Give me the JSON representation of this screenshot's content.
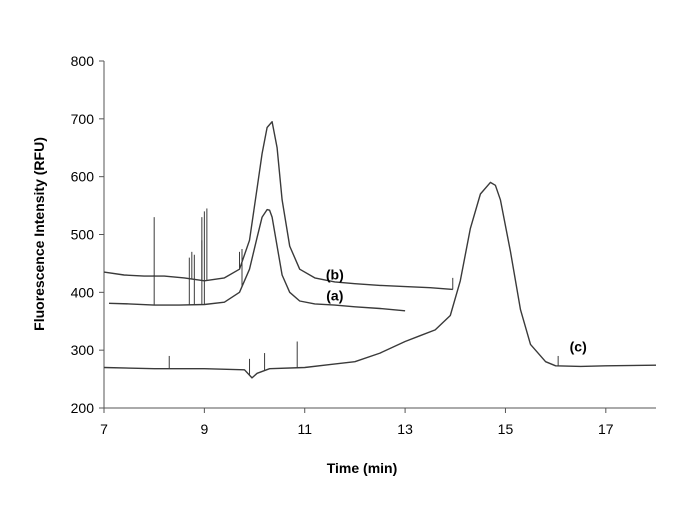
{
  "chart_data": {
    "type": "line",
    "title": "",
    "xlabel": "Time (min)",
    "ylabel": "Fluorescence Intensity (RFU)",
    "xlim": [
      7,
      18
    ],
    "ylim": [
      200,
      800
    ],
    "xticks": [
      7,
      9,
      11,
      13,
      15,
      17
    ],
    "yticks": [
      200,
      300,
      400,
      500,
      600,
      700,
      800
    ],
    "grid": false,
    "legend": "none",
    "line_color": "#3a3a3a",
    "series": [
      {
        "name": "(a)",
        "label_at": [
          11.6,
          386
        ],
        "x": [
          7.1,
          7.5,
          8.0,
          8.5,
          9.0,
          9.4,
          9.7,
          9.9,
          10.05,
          10.15,
          10.25,
          10.3,
          10.35,
          10.45,
          10.55,
          10.7,
          10.9,
          11.2,
          11.6,
          12.0,
          12.5,
          13.0
        ],
        "y": [
          381,
          380,
          378,
          378,
          379,
          383,
          400,
          440,
          495,
          530,
          543,
          542,
          530,
          480,
          430,
          400,
          385,
          380,
          378,
          375,
          372,
          368
        ],
        "spikes": [
          [
            8.0,
            430
          ],
          [
            8.7,
            460
          ],
          [
            8.8,
            465
          ],
          [
            8.95,
            490
          ],
          [
            9.0,
            540
          ],
          [
            9.75,
            475
          ]
        ]
      },
      {
        "name": "(b)",
        "label_at": [
          11.6,
          422
        ],
        "x": [
          7.0,
          7.4,
          7.8,
          8.2,
          8.6,
          9.0,
          9.4,
          9.7,
          9.9,
          10.05,
          10.15,
          10.25,
          10.35,
          10.45,
          10.55,
          10.7,
          10.9,
          11.2,
          11.6,
          12.0,
          12.5,
          13.0,
          13.5,
          13.95
        ],
        "y": [
          435,
          430,
          428,
          428,
          425,
          420,
          425,
          440,
          490,
          580,
          640,
          685,
          695,
          650,
          560,
          480,
          440,
          425,
          418,
          415,
          412,
          410,
          408,
          405
        ],
        "spikes": [
          [
            8.0,
            530
          ],
          [
            8.75,
            470
          ],
          [
            8.95,
            530
          ],
          [
            9.05,
            545
          ],
          [
            9.7,
            470
          ],
          [
            13.95,
            425
          ]
        ]
      },
      {
        "name": "(c)",
        "label_at": [
          16.45,
          298
        ],
        "x": [
          7.0,
          8.0,
          9.0,
          9.8,
          9.95,
          10.05,
          10.3,
          11.0,
          11.5,
          12.0,
          12.5,
          13.0,
          13.3,
          13.6,
          13.9,
          14.1,
          14.3,
          14.5,
          14.7,
          14.8,
          14.9,
          15.1,
          15.3,
          15.5,
          15.8,
          16.0,
          16.5,
          17.0,
          18.0
        ],
        "y": [
          270,
          268,
          268,
          266,
          252,
          260,
          268,
          270,
          275,
          280,
          295,
          315,
          325,
          335,
          360,
          420,
          510,
          570,
          590,
          585,
          560,
          470,
          370,
          310,
          280,
          273,
          272,
          273,
          274
        ],
        "spikes": [
          [
            8.3,
            290
          ],
          [
            9.9,
            285
          ],
          [
            10.2,
            295
          ],
          [
            10.85,
            315
          ],
          [
            16.05,
            290
          ]
        ]
      }
    ]
  }
}
